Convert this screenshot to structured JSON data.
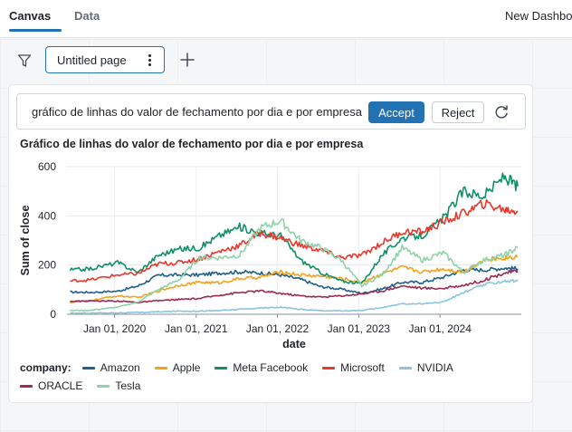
{
  "tabs": [
    {
      "label": "Canvas",
      "active": true
    },
    {
      "label": "Data",
      "active": false
    }
  ],
  "dashboard_title": "New Dashbo",
  "page": {
    "name": "Untitled page"
  },
  "prompt": {
    "text": "gráfico de linhas do valor de fechamento por dia e por empresa",
    "accept_label": "Accept",
    "reject_label": "Reject"
  },
  "colors": {
    "accent": "#2272b4"
  },
  "icons": {
    "filter": "filter-icon",
    "kebab": "kebab-menu-icon",
    "add": "plus-icon",
    "refresh": "refresh-icon"
  },
  "chart_data": {
    "type": "line",
    "title": "Gráfico de linhas do valor de fechamento por dia e por empresa",
    "xlabel": "date",
    "ylabel": "Sum of close",
    "ylim": [
      0,
      600
    ],
    "yticks": [
      0,
      200,
      400,
      600
    ],
    "xlim": [
      "2019-06-01",
      "2024-12-31"
    ],
    "xticks": [
      {
        "date": "2020-01-01",
        "label": "Jan 01, 2020"
      },
      {
        "date": "2021-01-01",
        "label": "Jan 01, 2021"
      },
      {
        "date": "2022-01-01",
        "label": "Jan 01, 2022"
      },
      {
        "date": "2023-01-01",
        "label": "Jan 01, 2023"
      },
      {
        "date": "2024-01-01",
        "label": "Jan 01, 2024"
      }
    ],
    "grid": true,
    "legend_title": "company:",
    "legend_position": "bottom",
    "x": [
      "2019-06",
      "2019-09",
      "2020-01",
      "2020-04",
      "2020-07",
      "2020-10",
      "2021-01",
      "2021-04",
      "2021-07",
      "2021-10",
      "2022-01",
      "2022-04",
      "2022-07",
      "2022-10",
      "2023-01",
      "2023-04",
      "2023-07",
      "2023-10",
      "2024-01",
      "2024-04",
      "2024-07",
      "2024-10",
      "2024-12"
    ],
    "series": [
      {
        "name": "Amazon",
        "color": "#1f5f8b",
        "values": [
          90,
          89,
          94,
          115,
          158,
          160,
          160,
          168,
          172,
          168,
          160,
          142,
          112,
          102,
          85,
          103,
          130,
          130,
          151,
          180,
          180,
          188,
          185
        ]
      },
      {
        "name": "Apple",
        "color": "#f2a11b",
        "values": [
          48,
          56,
          75,
          68,
          95,
          118,
          130,
          128,
          145,
          150,
          172,
          160,
          155,
          145,
          130,
          165,
          190,
          172,
          185,
          172,
          220,
          230,
          235
        ]
      },
      {
        "name": "Meta Facebook",
        "color": "#109064",
        "values": [
          180,
          185,
          210,
          170,
          240,
          265,
          270,
          320,
          355,
          330,
          320,
          220,
          170,
          135,
          125,
          240,
          310,
          320,
          390,
          500,
          480,
          560,
          520
        ]
      },
      {
        "name": "Microsoft",
        "color": "#e8372c",
        "values": [
          135,
          140,
          160,
          165,
          205,
          210,
          225,
          255,
          280,
          330,
          310,
          280,
          260,
          230,
          240,
          290,
          335,
          335,
          375,
          410,
          450,
          425,
          420
        ]
      },
      {
        "name": "NVIDIA",
        "color": "#8ac4e0",
        "values": [
          4,
          5,
          6,
          7,
          10,
          13,
          13,
          15,
          20,
          25,
          29,
          20,
          15,
          14,
          15,
          27,
          42,
          43,
          50,
          88,
          120,
          135,
          135
        ]
      },
      {
        "name": "ORACLE",
        "color": "#9b2a4e",
        "values": [
          53,
          54,
          54,
          48,
          55,
          60,
          64,
          78,
          88,
          95,
          85,
          75,
          70,
          75,
          83,
          95,
          115,
          106,
          105,
          118,
          138,
          168,
          175
        ]
      },
      {
        "name": "Tesla",
        "color": "#8ed3a8",
        "values": [
          15,
          16,
          29,
          50,
          100,
          140,
          230,
          230,
          240,
          350,
          380,
          300,
          270,
          220,
          115,
          160,
          270,
          220,
          250,
          170,
          220,
          240,
          270
        ]
      }
    ]
  }
}
